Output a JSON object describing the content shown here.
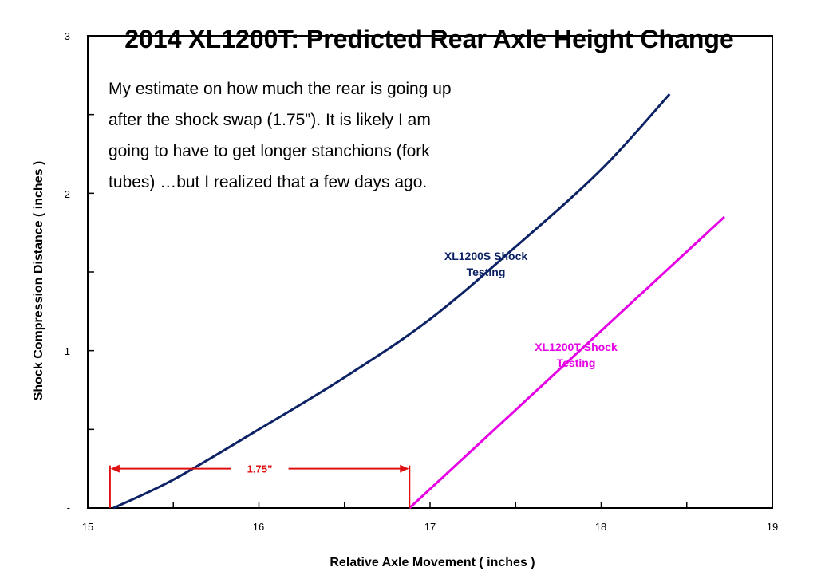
{
  "chart_data": {
    "type": "line",
    "title": "2014 XL1200T:  Predicted Rear Axle Height Change",
    "xlabel": "Relative Axle Movement  ( inches )",
    "ylabel": "Shock Compression Distance  ( inches )",
    "xlim": [
      15,
      19
    ],
    "ylim": [
      0,
      3
    ],
    "x_ticks": [
      "15",
      "16",
      "17",
      "18",
      "19"
    ],
    "y_ticks": [
      "-",
      "1",
      "2",
      "3"
    ],
    "grid": false,
    "annotation_text": [
      "My estimate on how much the rear is going up",
      "after the shock swap (1.75”).  It is likely I am",
      "going to have to get longer stanchions (fork",
      "tubes) …but I realized that a few days ago."
    ],
    "series": [
      {
        "name": "XL1200S Shock Testing",
        "color": "#0d2366",
        "x": [
          15.15,
          15.5,
          16.0,
          16.5,
          17.0,
          17.5,
          18.0,
          18.4
        ],
        "y": [
          0.0,
          0.18,
          0.5,
          0.83,
          1.2,
          1.66,
          2.15,
          2.63
        ]
      },
      {
        "name": "XL1200T Shock Testing",
        "color": "#e600e6",
        "x": [
          16.88,
          18.72
        ],
        "y": [
          0.0,
          1.85
        ]
      }
    ],
    "dimension": {
      "label": "1.75”",
      "x_start": 15.13,
      "x_end": 16.88,
      "y": 0.25,
      "color": "#e01010"
    }
  }
}
